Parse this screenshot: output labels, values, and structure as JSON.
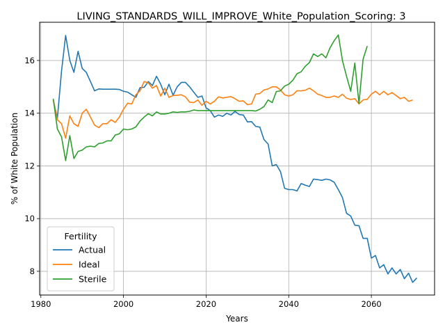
{
  "chart_data": {
    "type": "line",
    "title": "LIVING_STANDARDS_WILL_IMPROVE_White_Population_Scoring: 3",
    "xlabel": "Years",
    "ylabel": "% of White Population",
    "xlim": [
      1979.7,
      2075.3
    ],
    "ylim": [
      7.1,
      17.45
    ],
    "xticks": [
      1980,
      2000,
      2020,
      2040,
      2060
    ],
    "yticks": [
      8,
      10,
      12,
      14,
      16
    ],
    "grid": true,
    "legend": {
      "title": "Fertility",
      "placement": "lower-left"
    },
    "x_start": 1983,
    "series": [
      {
        "name": "Actual",
        "color": "#1f77b4",
        "values": [
          14.5,
          13.8,
          15.6,
          16.95,
          16.0,
          15.55,
          16.35,
          15.7,
          15.55,
          15.2,
          14.85,
          14.92,
          14.91,
          14.91,
          14.91,
          14.91,
          14.9,
          14.83,
          14.8,
          14.7,
          14.6,
          14.97,
          14.98,
          15.2,
          15.05,
          15.4,
          15.1,
          14.7,
          15.1,
          14.68,
          15.0,
          15.17,
          15.17,
          15.0,
          14.8,
          14.6,
          14.65,
          14.2,
          14.1,
          13.85,
          13.93,
          13.88,
          14.0,
          13.93,
          14.07,
          13.95,
          13.93,
          13.67,
          13.68,
          13.5,
          13.47,
          13.0,
          12.83,
          12.0,
          12.05,
          11.78,
          11.15,
          11.1,
          11.1,
          11.05,
          11.33,
          11.27,
          11.22,
          11.5,
          11.48,
          11.45,
          11.5,
          11.47,
          11.38,
          11.1,
          10.8,
          10.2,
          10.1,
          9.75,
          9.73,
          9.25,
          9.25,
          8.5,
          8.6,
          8.13,
          8.25,
          7.9,
          8.13,
          7.9,
          8.07,
          7.72,
          7.93,
          7.58,
          7.75
        ]
      },
      {
        "name": "Ideal",
        "color": "#ff7f0e",
        "values": [
          14.5,
          13.75,
          13.6,
          13.05,
          13.9,
          13.6,
          13.5,
          14.0,
          14.15,
          13.85,
          13.55,
          13.45,
          13.6,
          13.6,
          13.75,
          13.65,
          13.85,
          14.15,
          14.38,
          14.35,
          14.7,
          14.85,
          15.2,
          15.15,
          14.95,
          15.05,
          14.65,
          14.95,
          14.6,
          14.67,
          14.68,
          14.7,
          14.62,
          14.42,
          14.4,
          14.5,
          14.3,
          14.45,
          14.35,
          14.45,
          14.62,
          14.58,
          14.6,
          14.63,
          14.55,
          14.45,
          14.47,
          14.32,
          14.35,
          14.72,
          14.75,
          14.88,
          14.92,
          15.0,
          15.0,
          14.88,
          14.7,
          14.65,
          14.7,
          14.85,
          14.85,
          14.87,
          14.95,
          14.85,
          14.72,
          14.67,
          14.6,
          14.6,
          14.65,
          14.6,
          14.72,
          14.57,
          14.52,
          14.55,
          14.35,
          14.5,
          14.53,
          14.72,
          14.83,
          14.7,
          14.83,
          14.7,
          14.78,
          14.67,
          14.55,
          14.6,
          14.45,
          14.5
        ]
      },
      {
        "name": "Sterile",
        "color": "#2ca02c",
        "values": [
          14.55,
          13.4,
          13.1,
          12.2,
          13.15,
          12.28,
          12.55,
          12.6,
          12.72,
          12.75,
          12.72,
          12.85,
          12.87,
          12.95,
          12.95,
          13.17,
          13.22,
          13.4,
          13.37,
          13.4,
          13.48,
          13.7,
          13.85,
          13.98,
          13.9,
          14.05,
          13.97,
          13.97,
          14.0,
          14.05,
          14.03,
          14.05,
          14.05,
          14.07,
          14.12,
          14.1,
          14.1,
          14.1,
          14.1,
          14.1,
          14.1,
          14.1,
          14.1,
          14.1,
          14.1,
          14.1,
          14.1,
          14.1,
          14.1,
          14.08,
          14.15,
          14.25,
          14.5,
          14.4,
          14.82,
          14.85,
          15.03,
          15.1,
          15.25,
          15.5,
          15.57,
          15.78,
          15.92,
          16.25,
          16.15,
          16.25,
          16.1,
          16.48,
          16.75,
          16.97,
          16.0,
          15.4,
          14.83,
          15.9,
          14.37,
          16.05,
          16.55
        ]
      }
    ]
  }
}
